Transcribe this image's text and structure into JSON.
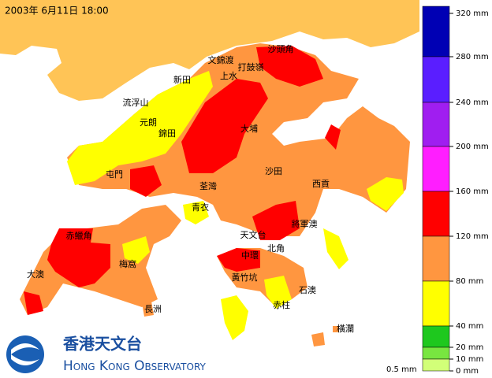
{
  "header": {
    "timestamp": "2003年 6月11日 18:00"
  },
  "places": [
    {
      "label": "沙頭角"
    },
    {
      "label": "文錦渡"
    },
    {
      "label": "打鼓嶺"
    },
    {
      "label": "上水"
    },
    {
      "label": "新田"
    },
    {
      "label": "流浮山"
    },
    {
      "label": "元朗"
    },
    {
      "label": "錦田"
    },
    {
      "label": "大埔"
    },
    {
      "label": "屯門"
    },
    {
      "label": "沙田"
    },
    {
      "label": "西貢"
    },
    {
      "label": "荃灣"
    },
    {
      "label": "青衣"
    },
    {
      "label": "天文台"
    },
    {
      "label": "將軍澳"
    },
    {
      "label": "赤鱲角"
    },
    {
      "label": "中環"
    },
    {
      "label": "北角"
    },
    {
      "label": "梅窩"
    },
    {
      "label": "大澳"
    },
    {
      "label": "黃竹坑"
    },
    {
      "label": "石澳"
    },
    {
      "label": "赤柱"
    },
    {
      "label": "長洲"
    },
    {
      "label": "橫瀾"
    }
  ],
  "legend": {
    "colors": [
      "#0000b4",
      "#5a1eff",
      "#a01ef0",
      "#ff1eff",
      "#ff0000",
      "#ff9640",
      "#ffff00",
      "#1ec81e",
      "#78e640",
      "#d2ff78"
    ],
    "labels": [
      "320 mm",
      "280 mm",
      "240 mm",
      "200 mm",
      "160 mm",
      "120 mm",
      "80 mm",
      "40 mm",
      "20 mm",
      "10 mm",
      "0 mm"
    ],
    "bottom_label": "0.5 mm"
  },
  "logo": {
    "chinese": "香港天文台",
    "english": "Hong Kong Observatory"
  }
}
